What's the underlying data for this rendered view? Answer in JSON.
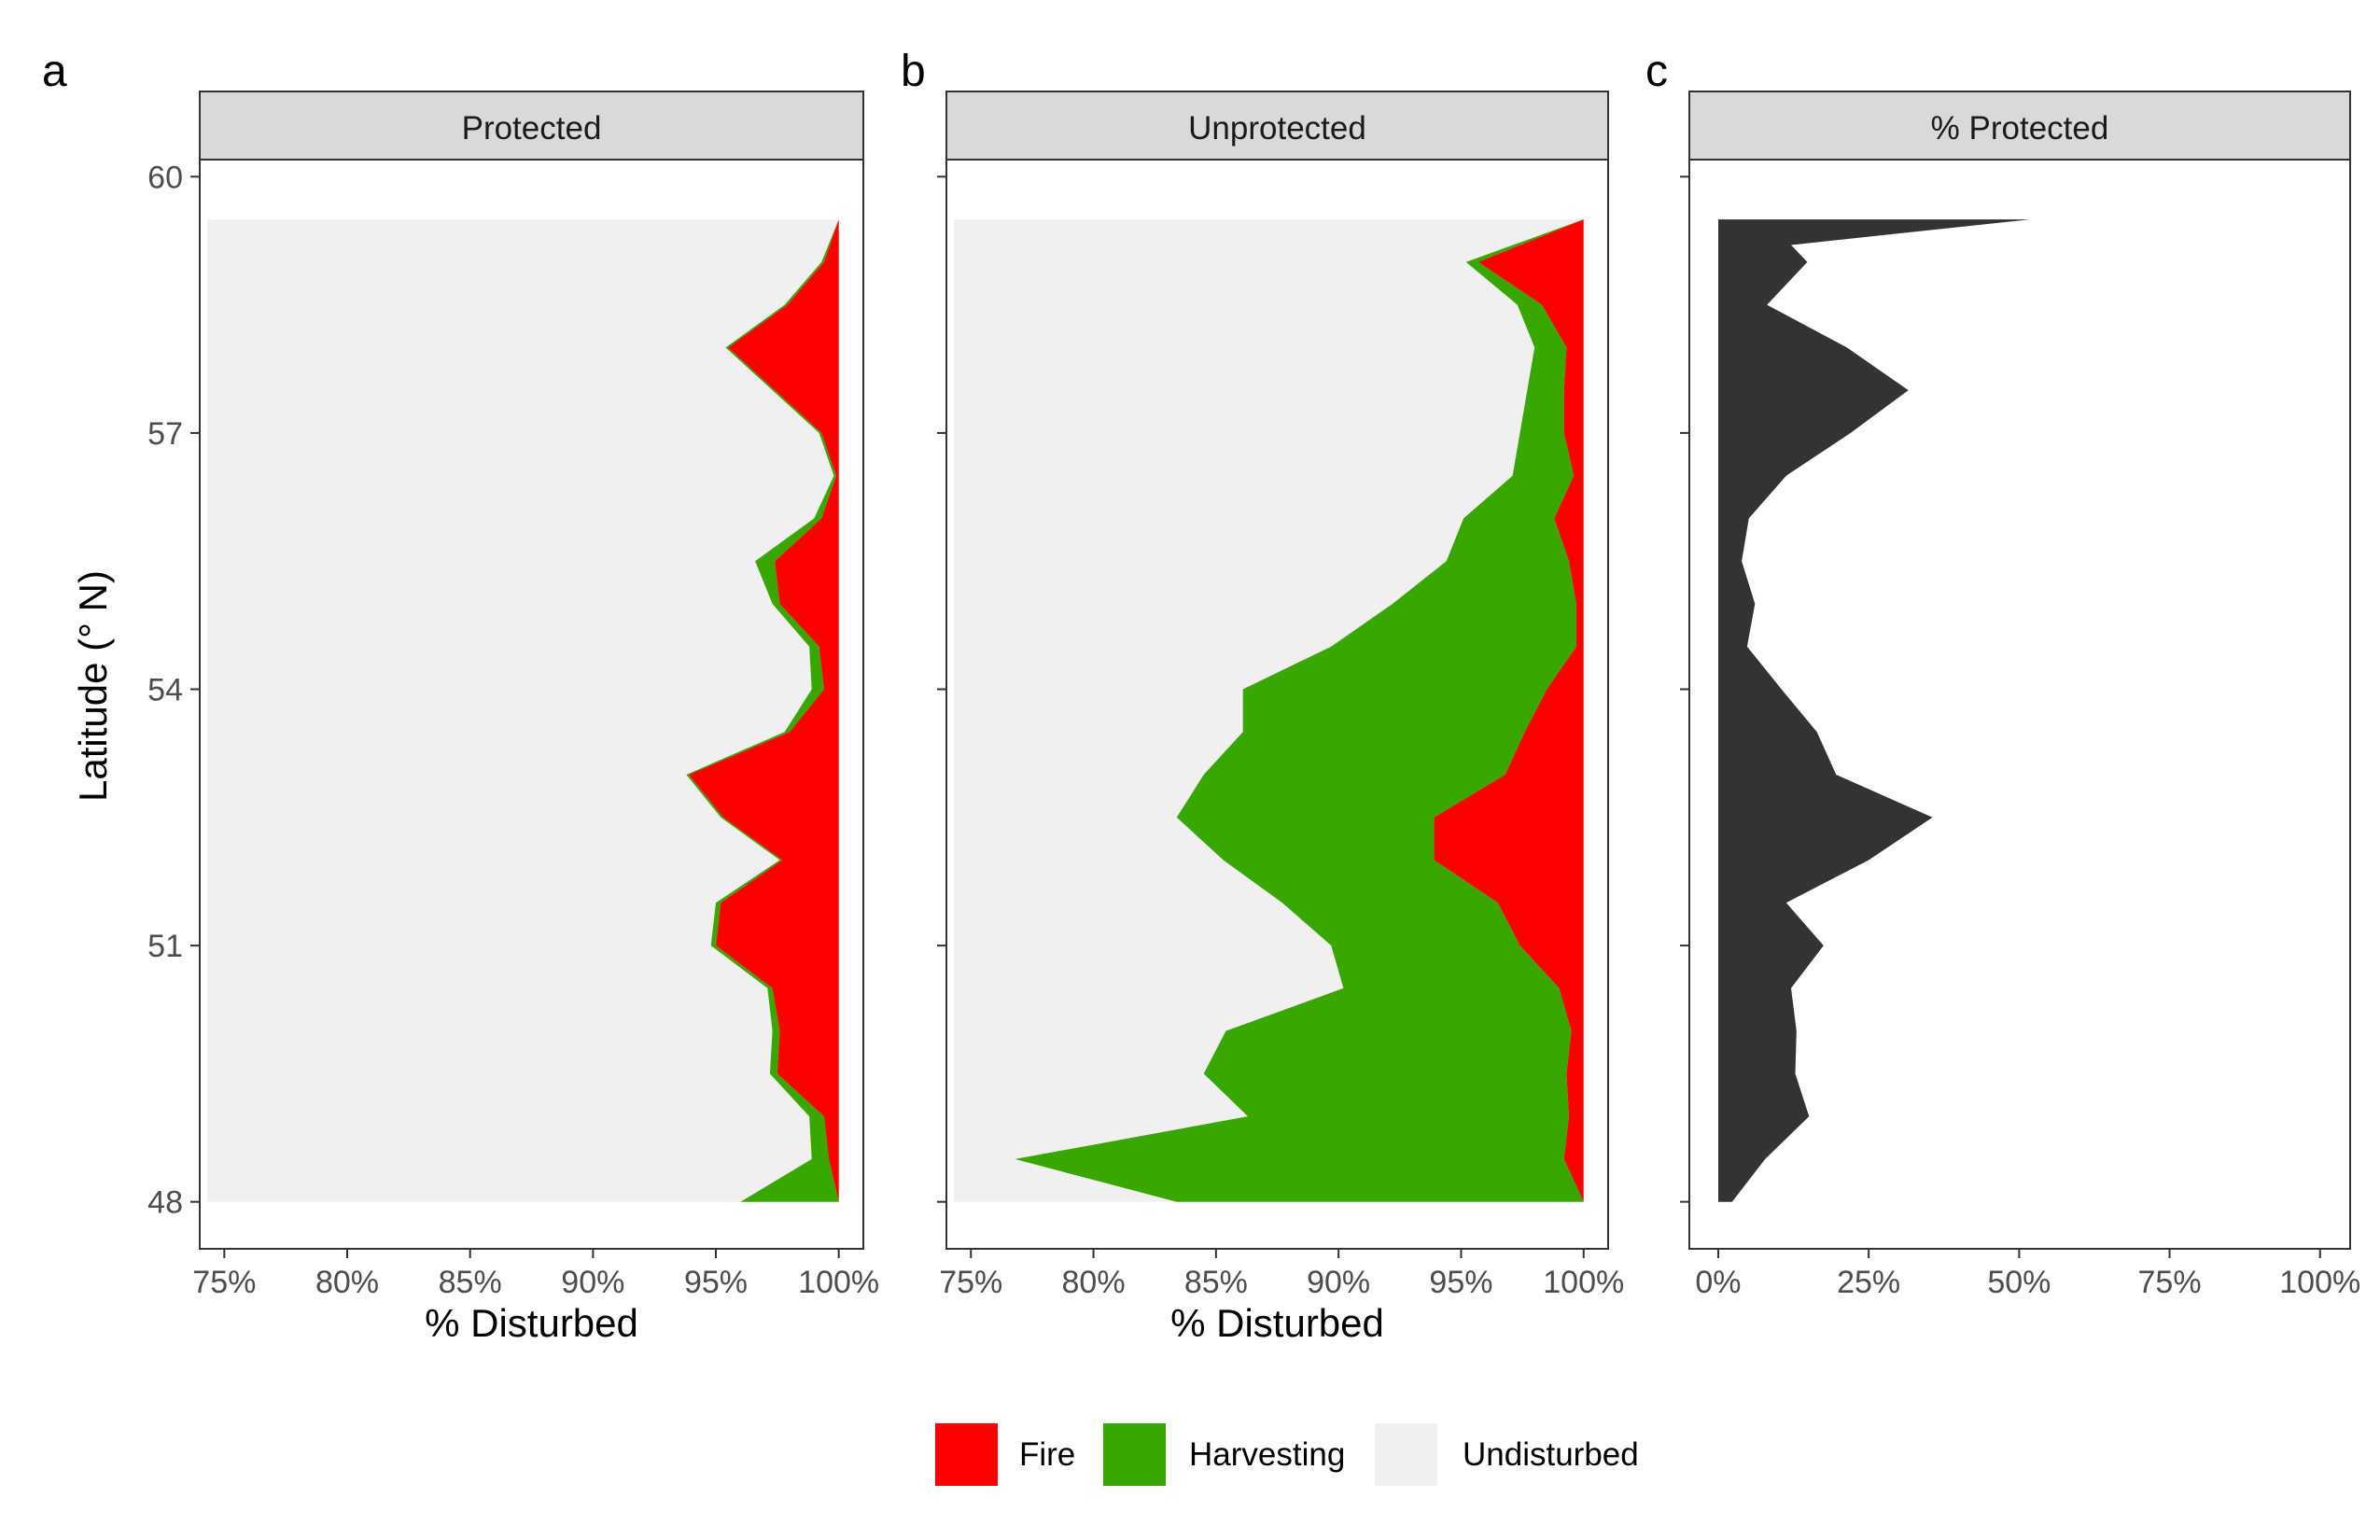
{
  "chart_data": [
    {
      "type": "area",
      "panel_letter": "a",
      "strip": "Protected",
      "xlabel": "% Disturbed",
      "ylabel": "Latitude (° N)",
      "xlim": [
        74,
        101
      ],
      "ylim": [
        47.45,
        60.2
      ],
      "x_ticks": [
        75,
        80,
        85,
        90,
        95,
        100
      ],
      "x_tick_labels": [
        "75%",
        "80%",
        "85%",
        "90%",
        "95%",
        "100%"
      ],
      "y_ticks": [
        48,
        51,
        54,
        57,
        60
      ],
      "y_tick_labels": [
        "48",
        "51",
        "54",
        "57",
        "60"
      ],
      "latitude": [
        48.0,
        48.5,
        49.0,
        49.5,
        50.0,
        50.5,
        51.0,
        51.5,
        52.0,
        52.5,
        53.0,
        53.5,
        54.0,
        54.5,
        55.0,
        55.5,
        56.0,
        56.5,
        57.0,
        57.5,
        58.0,
        58.5,
        59.0,
        59.5
      ],
      "series": [
        {
          "name": "Undisturbed",
          "values": [
            96.0,
            98.9,
            98.8,
            97.2,
            97.3,
            97.1,
            94.8,
            95.0,
            97.6,
            95.2,
            93.8,
            97.8,
            98.9,
            98.8,
            97.3,
            96.6,
            99.0,
            99.8,
            99.2,
            97.3,
            95.4,
            97.8,
            99.3,
            100.0
          ]
        },
        {
          "name": "Harvesting",
          "values": [
            4.0,
            0.7,
            0.6,
            0.3,
            0.3,
            0.2,
            0.2,
            0.2,
            0.1,
            0.1,
            0.1,
            0.2,
            0.5,
            0.4,
            0.3,
            0.8,
            0.3,
            0.1,
            0.1,
            0.1,
            0.1,
            0.1,
            0.1,
            0.0
          ]
        },
        {
          "name": "Fire",
          "values": [
            0.0,
            0.4,
            0.6,
            2.5,
            2.4,
            2.7,
            5.0,
            4.8,
            2.3,
            4.7,
            6.1,
            2.0,
            0.6,
            0.8,
            2.4,
            2.6,
            0.7,
            0.1,
            0.7,
            2.6,
            4.5,
            2.1,
            0.6,
            0.0
          ]
        }
      ]
    },
    {
      "type": "area",
      "panel_letter": "b",
      "strip": "Unprotected",
      "xlabel": "% Disturbed",
      "xlim": [
        74,
        101
      ],
      "ylim": [
        47.45,
        60.2
      ],
      "x_ticks": [
        75,
        80,
        85,
        90,
        95,
        100
      ],
      "x_tick_labels": [
        "75%",
        "80%",
        "85%",
        "90%",
        "95%",
        "100%"
      ],
      "latitude": [
        48.0,
        48.5,
        49.0,
        49.5,
        50.0,
        50.5,
        51.0,
        51.5,
        52.0,
        52.5,
        53.0,
        53.5,
        54.0,
        54.5,
        55.0,
        55.5,
        56.0,
        56.5,
        57.0,
        57.5,
        58.0,
        58.5,
        59.0,
        59.5
      ],
      "series": [
        {
          "name": "Undisturbed",
          "values": [
            83.4,
            76.8,
            86.3,
            84.5,
            85.4,
            90.2,
            89.7,
            87.7,
            85.3,
            83.4,
            84.5,
            86.1,
            86.1,
            89.7,
            92.2,
            94.4,
            95.1,
            97.1,
            97.4,
            97.7,
            98.0,
            97.3,
            95.2,
            100.0
          ]
        },
        {
          "name": "Harvesting",
          "values": [
            16.6,
            22.4,
            13.1,
            14.8,
            14.1,
            8.8,
            7.7,
            8.8,
            8.6,
            10.5,
            12.3,
            11.5,
            12.4,
            10.0,
            7.5,
            5.0,
            3.7,
            2.5,
            1.8,
            1.5,
            1.3,
            1.0,
            0.5,
            0.0
          ]
        },
        {
          "name": "Fire",
          "values": [
            0.0,
            0.8,
            0.6,
            0.7,
            0.5,
            1.0,
            2.6,
            3.5,
            6.1,
            6.1,
            3.2,
            2.4,
            1.5,
            0.3,
            0.3,
            0.6,
            1.2,
            0.4,
            0.8,
            0.8,
            0.7,
            1.7,
            4.3,
            0.0
          ]
        }
      ]
    },
    {
      "type": "area",
      "panel_letter": "c",
      "strip": "% Protected",
      "xlim": [
        -4.8,
        105
      ],
      "ylim": [
        47.45,
        60.2
      ],
      "x_ticks": [
        0,
        25,
        50,
        75,
        100
      ],
      "x_tick_labels": [
        "0%",
        "25%",
        "50%",
        "75%",
        "100%"
      ],
      "latitude": [
        48.0,
        48.5,
        49.0,
        49.5,
        50.0,
        50.5,
        51.0,
        51.5,
        52.0,
        52.5,
        53.0,
        53.5,
        54.0,
        54.5,
        55.0,
        55.5,
        56.0,
        56.5,
        57.0,
        57.5,
        58.0,
        58.5,
        59.0,
        59.5
      ],
      "series": [
        {
          "name": "% Protected",
          "values": [
            2.3,
            7.8,
            15.1,
            12.8,
            13.0,
            12.1,
            17.5,
            11.3,
            25.0,
            35.6,
            19.6,
            16.4,
            10.5,
            4.8,
            6.1,
            3.9,
            5.1,
            11.3,
            22.0,
            31.6,
            21.4,
            8.1,
            14.8,
            12.1,
            51.8
          ]
        }
      ],
      "latitude_full": [
        48.0,
        48.5,
        49.0,
        49.5,
        50.0,
        50.5,
        51.0,
        51.5,
        52.0,
        52.5,
        53.0,
        53.5,
        54.0,
        54.5,
        55.0,
        55.5,
        56.0,
        56.5,
        57.0,
        57.5,
        58.0,
        58.5,
        59.0,
        59.2,
        59.5
      ]
    }
  ],
  "legend": {
    "items": [
      {
        "label": "Fire",
        "color": "#ff0000"
      },
      {
        "label": "Harvesting",
        "color": "#38a800"
      },
      {
        "label": "Undisturbed",
        "color": "#f0f0f0"
      }
    ]
  },
  "colors": {
    "fire": "#ff0000",
    "harvesting": "#38a800",
    "undisturbed": "#f0f0f0",
    "protected": "#333333",
    "strip_bg": "#d9d9d9"
  }
}
